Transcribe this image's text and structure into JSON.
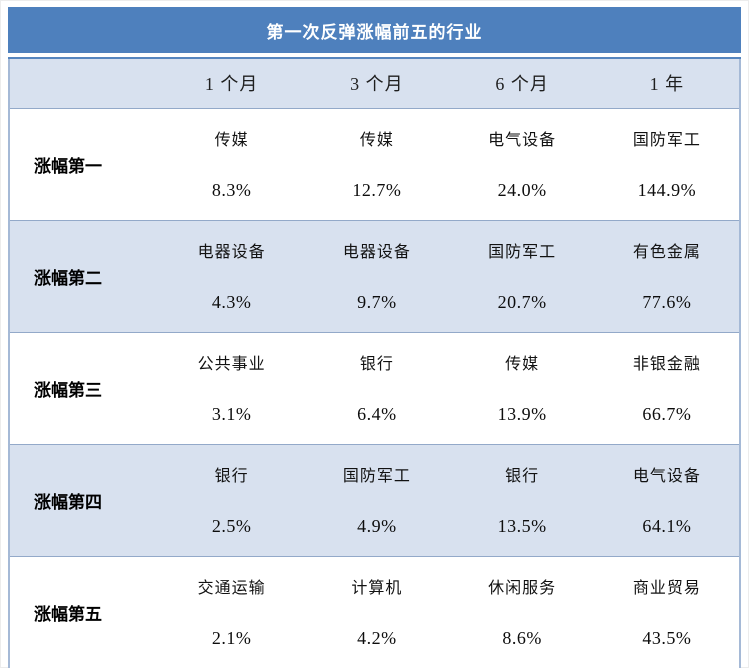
{
  "colors": {
    "title_bg": "#4e80bd",
    "title_text": "#ffffff",
    "band_bg": "#d8e1ef",
    "row_alt_bg": "#d8e1ef",
    "row_bg": "#ffffff",
    "separator": "#93a9c9",
    "text": "#141414"
  },
  "chart_data": {
    "type": "table",
    "title": "第一次反弹涨幅前五的行业",
    "columns": [
      "1 个月",
      "3 个月",
      "6 个月",
      "1 年"
    ],
    "rows": [
      {
        "label": "涨幅第一",
        "cells": [
          {
            "industry": "传媒",
            "pct": "8.3%"
          },
          {
            "industry": "传媒",
            "pct": "12.7%"
          },
          {
            "industry": "电气设备",
            "pct": "24.0%"
          },
          {
            "industry": "国防军工",
            "pct": "144.9%"
          }
        ],
        "values": [
          8.3,
          12.7,
          24.0,
          144.9
        ]
      },
      {
        "label": "涨幅第二",
        "cells": [
          {
            "industry": "电器设备",
            "pct": "4.3%"
          },
          {
            "industry": "电器设备",
            "pct": "9.7%"
          },
          {
            "industry": "国防军工",
            "pct": "20.7%"
          },
          {
            "industry": "有色金属",
            "pct": "77.6%"
          }
        ],
        "values": [
          4.3,
          9.7,
          20.7,
          77.6
        ]
      },
      {
        "label": "涨幅第三",
        "cells": [
          {
            "industry": "公共事业",
            "pct": "3.1%"
          },
          {
            "industry": "银行",
            "pct": "6.4%"
          },
          {
            "industry": "传媒",
            "pct": "13.9%"
          },
          {
            "industry": "非银金融",
            "pct": "66.7%"
          }
        ],
        "values": [
          3.1,
          6.4,
          13.9,
          66.7
        ]
      },
      {
        "label": "涨幅第四",
        "cells": [
          {
            "industry": "银行",
            "pct": "2.5%"
          },
          {
            "industry": "国防军工",
            "pct": "4.9%"
          },
          {
            "industry": "银行",
            "pct": "13.5%"
          },
          {
            "industry": "电气设备",
            "pct": "64.1%"
          }
        ],
        "values": [
          2.5,
          4.9,
          13.5,
          64.1
        ]
      },
      {
        "label": "涨幅第五",
        "cells": [
          {
            "industry": "交通运输",
            "pct": "2.1%"
          },
          {
            "industry": "计算机",
            "pct": "4.2%"
          },
          {
            "industry": "休闲服务",
            "pct": "8.6%"
          },
          {
            "industry": "商业贸易",
            "pct": "43.5%"
          }
        ],
        "values": [
          2.1,
          4.2,
          8.6,
          43.5
        ]
      }
    ]
  }
}
